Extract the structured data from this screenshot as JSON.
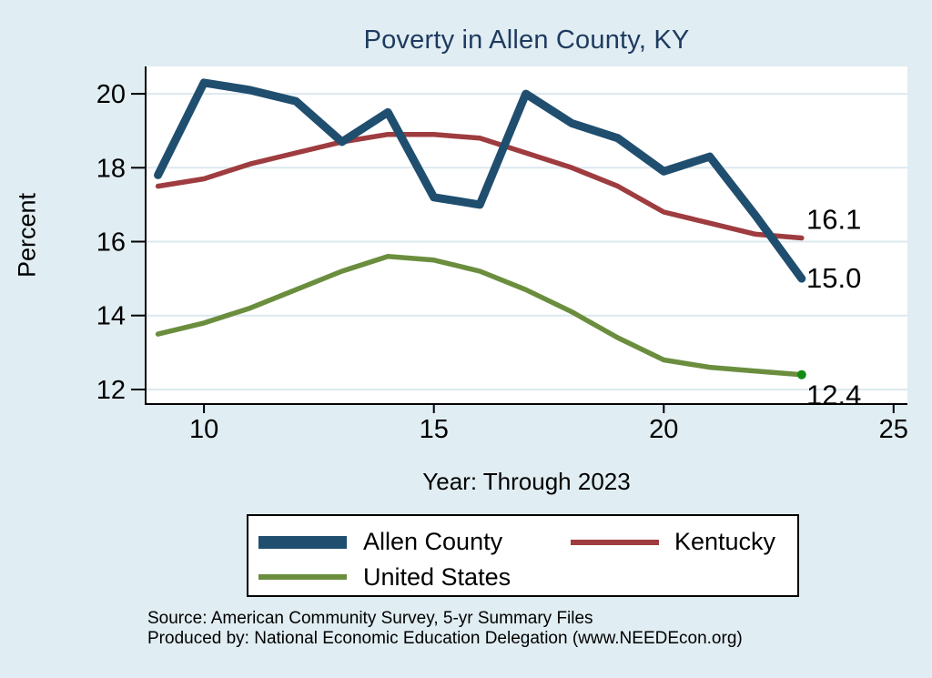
{
  "chart_data": {
    "type": "line",
    "title": "Poverty in Allen County, KY",
    "xlabel": "Year: Through 2023",
    "ylabel": "Percent",
    "x": [
      9,
      10,
      11,
      12,
      13,
      14,
      15,
      16,
      17,
      18,
      19,
      20,
      21,
      22,
      23
    ],
    "x_ticks": [
      10,
      15,
      20,
      25
    ],
    "y_ticks": [
      12,
      14,
      16,
      18,
      20
    ],
    "xlim": [
      8.75,
      25.3
    ],
    "ylim": [
      11.63,
      20.74
    ],
    "grid": true,
    "legend_position": "bottom",
    "series": [
      {
        "name": "Allen County",
        "color": "#1f4e6f",
        "line_width": 9,
        "values": [
          17.8,
          20.3,
          20.1,
          19.8,
          18.7,
          19.5,
          17.2,
          17.0,
          20.0,
          19.2,
          18.8,
          17.9,
          18.3,
          16.7,
          15.0
        ],
        "end_label": "15.0"
      },
      {
        "name": "Kentucky",
        "color": "#9e3c3f",
        "line_width": 5.5,
        "values": [
          17.5,
          17.7,
          18.1,
          18.4,
          18.7,
          18.9,
          18.9,
          18.8,
          18.4,
          18.0,
          17.5,
          16.8,
          16.5,
          16.2,
          16.1
        ],
        "end_label": "16.1"
      },
      {
        "name": "United States",
        "color": "#6b8e3e",
        "line_width": 5.5,
        "values": [
          13.5,
          13.8,
          14.2,
          14.7,
          15.2,
          15.6,
          15.5,
          15.2,
          14.7,
          14.1,
          13.4,
          12.8,
          12.6,
          12.5,
          12.4
        ],
        "end_label": "12.4",
        "end_marker_color": "#128c12"
      }
    ],
    "colors": {
      "background": "#e0edf2",
      "plot_background": "#ffffff",
      "grid": "#dce9f0",
      "axis": "#000000",
      "title": "#1e3a5f"
    }
  },
  "footer": {
    "source_line": "Source: American Community Survey, 5-yr Summary Files",
    "produced_line": "Produced by: National Economic Education Delegation (www.NEEDEcon.org)"
  }
}
